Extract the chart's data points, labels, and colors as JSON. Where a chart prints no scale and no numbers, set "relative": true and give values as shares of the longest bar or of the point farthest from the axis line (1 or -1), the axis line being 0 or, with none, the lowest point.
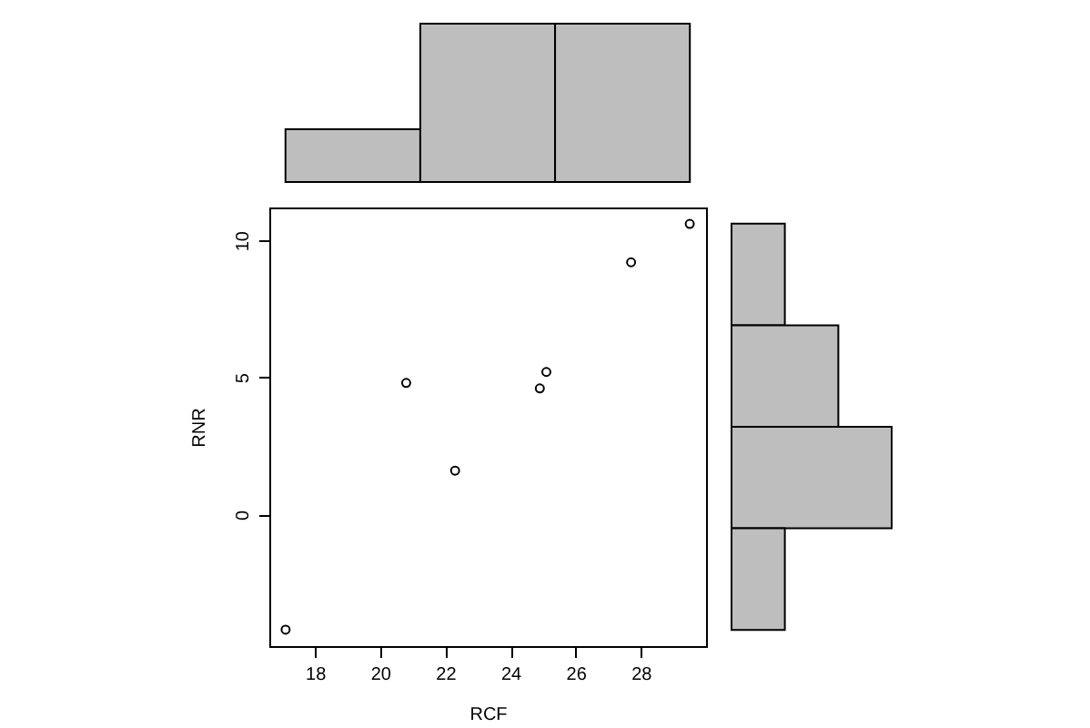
{
  "chart_data": [
    {
      "type": "bar",
      "categories": [
        null,
        null,
        null
      ],
      "values": [
        0.333,
        1,
        1
      ],
      "relative": true,
      "color": "#bebebe"
    },
    {
      "type": "scatter",
      "xlabel": "RCF",
      "ylabel": "RNR",
      "x": [
        17.1,
        20.8,
        22.3,
        24.9,
        25.1,
        27.7,
        29.5
      ],
      "values": [
        -4.2,
        4.8,
        1.6,
        4.6,
        5.2,
        9.2,
        10.6
      ],
      "color": "#000000",
      "marker": "circle",
      "xlim": [
        16.6,
        30.0
      ],
      "ylim": [
        -4.8,
        11.2
      ],
      "xticks": [
        18,
        20,
        22,
        24,
        26,
        28
      ],
      "yticks": [
        0,
        5,
        10
      ]
    },
    {
      "type": "bar",
      "orientation": "horizontal",
      "categories": [
        null,
        null,
        null,
        null
      ],
      "values": [
        0.333,
        0.667,
        1,
        0.333
      ],
      "relative": true,
      "color": "#bebebe"
    }
  ]
}
